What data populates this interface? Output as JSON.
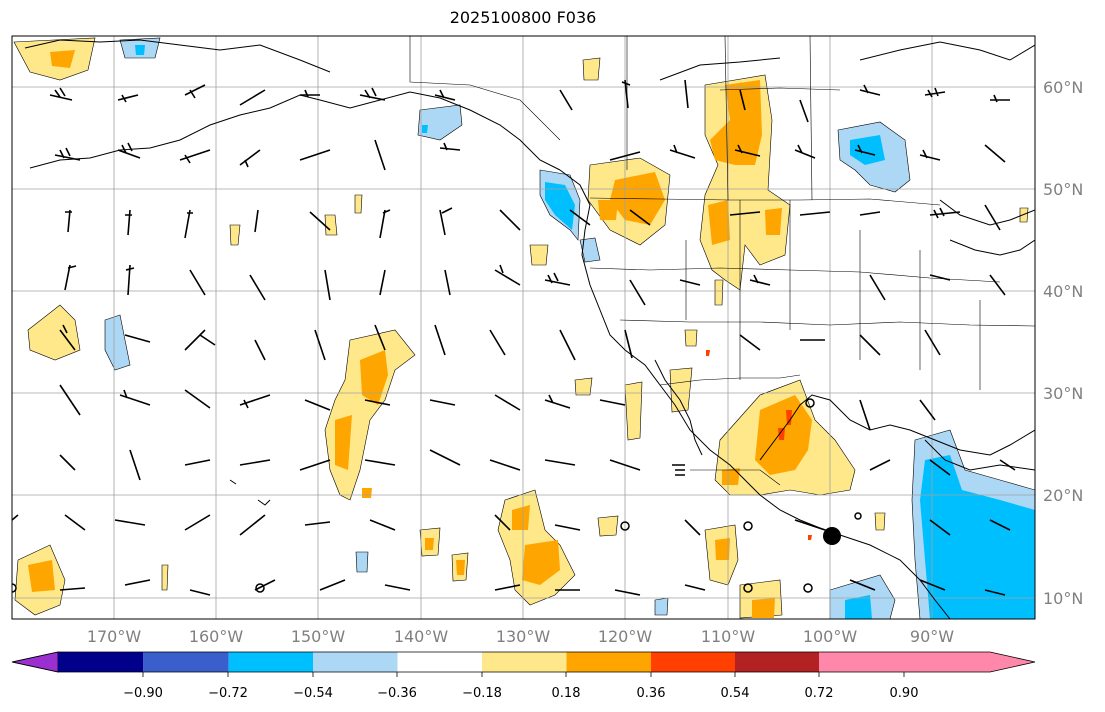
{
  "title": "2025100800 F036",
  "map": {
    "latitude_labels": [
      "60°N",
      "50°N",
      "40°N",
      "30°N",
      "20°N",
      "10°N"
    ],
    "longitude_labels": [
      "170°W",
      "160°W",
      "150°W",
      "140°W",
      "130°W",
      "120°W",
      "110°W",
      "100°W",
      "90°W"
    ]
  },
  "colorbar": {
    "tick_labels": [
      "−0.90",
      "−0.72",
      "−0.54",
      "−0.36",
      "−0.18",
      "0.18",
      "0.36",
      "0.54",
      "0.72",
      "0.90"
    ],
    "colors": [
      "#9b30d0",
      "#00008b",
      "#3a5fcd",
      "#00bfff",
      "#add8f5",
      "#ffffff",
      "#ffe88a",
      "#ffa500",
      "#ff4000",
      "#b22222",
      "#ff88aa"
    ]
  },
  "contour_colors": {
    "positive_low": "#ffe88a",
    "positive_mid": "#ffa500",
    "positive_high": "#ff4000",
    "negative_low": "#add8f5",
    "negative_mid": "#00bfff"
  }
}
